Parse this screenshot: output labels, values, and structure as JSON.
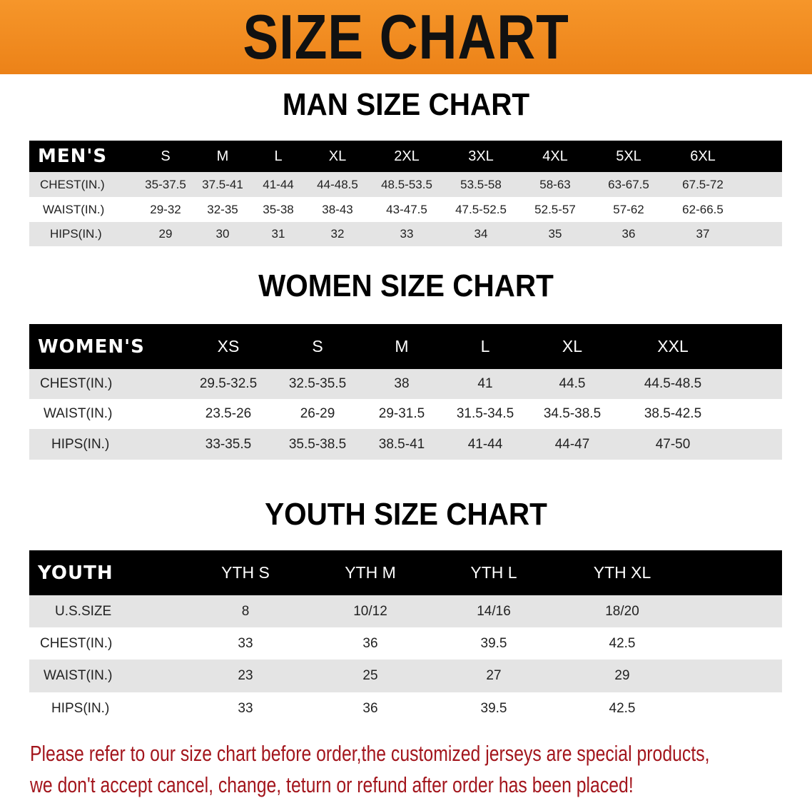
{
  "banner": {
    "title": "SIZE CHART",
    "color": "#f08a1c"
  },
  "men": {
    "title": "MAN SIZE CHART",
    "header": [
      "MEN'S",
      "S",
      "M",
      "L",
      "XL",
      "2XL",
      "3XL",
      "4XL",
      "5XL",
      "6XL"
    ],
    "rows": [
      [
        "CHEST(IN.)",
        "35-37.5",
        "37.5-41",
        "41-44",
        "44-48.5",
        "48.5-53.5",
        "53.5-58",
        "58-63",
        "63-67.5",
        "67.5-72"
      ],
      [
        "WAIST(IN.)",
        "29-32",
        "32-35",
        "35-38",
        "38-43",
        "43-47.5",
        "47.5-52.5",
        "52.5-57",
        "57-62",
        "62-66.5"
      ],
      [
        "HIPS(IN.)",
        "29",
        "30",
        "31",
        "32",
        "33",
        "34",
        "35",
        "36",
        "37"
      ]
    ]
  },
  "women": {
    "title": "WOMEN SIZE CHART",
    "header": [
      "WOMEN'S",
      "XS",
      "S",
      "M",
      "L",
      "XL",
      "XXL"
    ],
    "rows": [
      [
        "CHEST(IN.)",
        "29.5-32.5",
        "32.5-35.5",
        "38",
        "41",
        "44.5",
        "44.5-48.5"
      ],
      [
        "WAIST(IN.)",
        "23.5-26",
        "26-29",
        "29-31.5",
        "31.5-34.5",
        "34.5-38.5",
        "38.5-42.5"
      ],
      [
        "HIPS(IN.)",
        "33-35.5",
        "35.5-38.5",
        "38.5-41",
        "41-44",
        "44-47",
        "47-50"
      ]
    ]
  },
  "youth": {
    "title": "YOUTH SIZE CHART",
    "header": [
      "YOUTH",
      "YTH S",
      "YTH M",
      "YTH L",
      "YTH XL"
    ],
    "rows": [
      [
        "U.S.SIZE",
        "8",
        "10/12",
        "14/16",
        "18/20"
      ],
      [
        "CHEST(IN.)",
        "33",
        "36",
        "39.5",
        "42.5"
      ],
      [
        "WAIST(IN.)",
        "23",
        "25",
        "27",
        "29"
      ],
      [
        "HIPS(IN.)",
        "33",
        "36",
        "39.5",
        "42.5"
      ]
    ]
  },
  "note": {
    "line1": "Please refer to our size chart before order,the customized jerseys are special products,",
    "line2": "we don't accept cancel, change, teturn or refund after order has been placed!",
    "color": "#a3161d"
  }
}
